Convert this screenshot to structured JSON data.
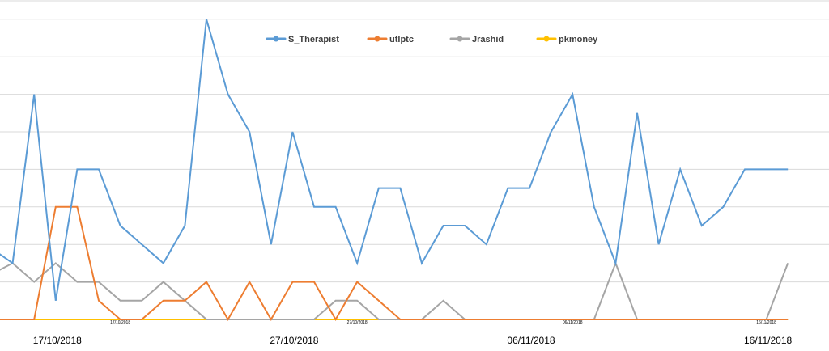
{
  "chart_data": {
    "type": "line",
    "title": "",
    "xlabel": "",
    "ylabel": "",
    "ylim": [
      0,
      16
    ],
    "grid": true,
    "legend_position": "top",
    "x_tick_labels": [
      "17/10/2018",
      "27/10/2018",
      "06/11/2018",
      "16/11/2018"
    ],
    "x_tick_indices": [
      3,
      14,
      25,
      36
    ],
    "small_tick_labels": [
      "17/10/2018",
      "27/10/2018",
      "06/11/2018",
      "16/11/2018"
    ],
    "series": [
      {
        "name": "S_Therapist",
        "color": "#5b9bd5",
        "values": [
          3.8,
          3,
          12,
          1,
          8,
          8,
          5,
          4,
          3,
          5,
          16,
          12,
          10,
          4,
          10,
          6,
          6,
          3,
          7,
          7,
          3,
          5,
          5,
          4,
          7,
          7,
          10,
          12,
          6,
          3,
          11,
          4,
          8,
          5,
          6,
          8,
          8,
          8
        ]
      },
      {
        "name": "utlptc",
        "color": "#ed7d31",
        "values": [
          0,
          0,
          0,
          6,
          6,
          1,
          0,
          0,
          1,
          1,
          2,
          0,
          2,
          0,
          2,
          2,
          0,
          2,
          1,
          0,
          0,
          0,
          0,
          0,
          0,
          0,
          0,
          0,
          0,
          0,
          0,
          0,
          0,
          0,
          0,
          0,
          0,
          0
        ]
      },
      {
        "name": "Jrashid",
        "color": "#a5a5a5",
        "values": [
          2.4,
          3,
          2,
          3,
          2,
          2,
          1,
          1,
          2,
          1,
          0,
          0,
          0,
          0,
          0,
          0,
          1,
          1,
          0,
          0,
          0,
          1,
          0,
          0,
          0,
          0,
          0,
          0,
          0,
          3,
          0,
          0,
          0,
          0,
          0,
          0,
          0,
          3
        ]
      },
      {
        "name": "pkmoney",
        "color": "#ffc000",
        "values": [
          0,
          0,
          0,
          0,
          0,
          0,
          0,
          0,
          0,
          0,
          0,
          0,
          0,
          0,
          0,
          0,
          0,
          0,
          0,
          0,
          0,
          0,
          0,
          0,
          0,
          0,
          0,
          0,
          0,
          0,
          0,
          0,
          0,
          0,
          0,
          0,
          0,
          0
        ]
      }
    ]
  }
}
